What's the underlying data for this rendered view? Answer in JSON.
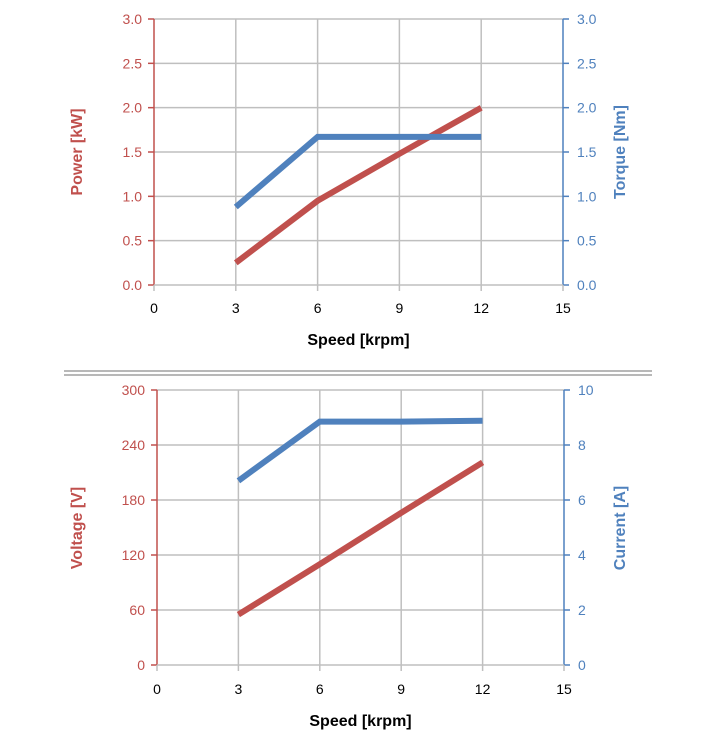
{
  "colors": {
    "red": "#c0504d",
    "blue": "#4f81bd",
    "grid": "#bfbfbf",
    "text": "#000000"
  },
  "chart_data": [
    {
      "type": "line",
      "xlabel": "Speed [krpm]",
      "ylabel_left": "Power [kW]",
      "ylabel_right": "Torque [Nm]",
      "xlim": [
        0,
        15
      ],
      "ylim_left": [
        0,
        3.0
      ],
      "ylim_right": [
        0,
        3.0
      ],
      "x_ticks": [
        "0",
        "3",
        "6",
        "9",
        "12",
        "15"
      ],
      "y_ticks_left": [
        "0.0",
        "0.5",
        "1.0",
        "1.5",
        "2.0",
        "2.5",
        "3.0"
      ],
      "y_ticks_right": [
        "0.0",
        "0.5",
        "1.0",
        "1.5",
        "2.0",
        "2.5",
        "3.0"
      ],
      "grid": true,
      "series": [
        {
          "axis": "left",
          "color": "#c0504d",
          "x": [
            3,
            6,
            9,
            12
          ],
          "y": [
            0.25,
            0.95,
            1.48,
            2.0
          ]
        },
        {
          "axis": "right",
          "color": "#4f81bd",
          "x": [
            3,
            6,
            9,
            12
          ],
          "y": [
            0.88,
            1.67,
            1.67,
            1.67
          ]
        }
      ]
    },
    {
      "type": "line",
      "xlabel": "Speed [krpm]",
      "ylabel_left": "Voltage [V]",
      "ylabel_right": "Current [A]",
      "xlim": [
        0,
        15
      ],
      "ylim_left": [
        0,
        300
      ],
      "ylim_right": [
        0,
        10
      ],
      "x_ticks": [
        "0",
        "3",
        "6",
        "9",
        "12",
        "15"
      ],
      "y_ticks_left": [
        "0",
        "60",
        "120",
        "180",
        "240",
        "300"
      ],
      "y_ticks_right": [
        "0",
        "2",
        "4",
        "6",
        "8",
        "10"
      ],
      "grid": true,
      "series": [
        {
          "axis": "left",
          "color": "#c0504d",
          "x": [
            3,
            6,
            9,
            12
          ],
          "y": [
            55,
            110,
            166,
            221
          ]
        },
        {
          "axis": "right",
          "color": "#4f81bd",
          "x": [
            3,
            6,
            9,
            12
          ],
          "y": [
            6.7,
            8.85,
            8.85,
            8.88
          ]
        }
      ]
    }
  ]
}
